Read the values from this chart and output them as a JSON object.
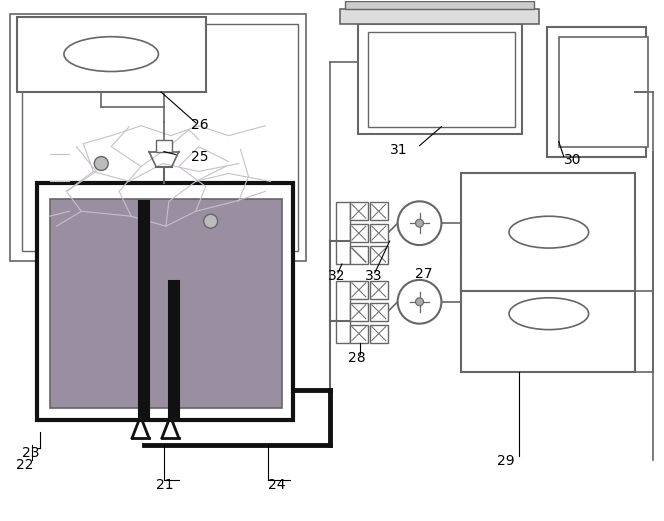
{
  "lc": "#666666",
  "dc": "#111111",
  "gc": "#888888",
  "specimen_color": "#9a8fa0",
  "crack_color": "#c8bfcc",
  "white": "#ffffff",
  "label_fs": 10,
  "labels": [
    "21",
    "22",
    "23",
    "24",
    "25",
    "26",
    "27",
    "28",
    "29",
    "30",
    "31",
    "32",
    "33"
  ]
}
